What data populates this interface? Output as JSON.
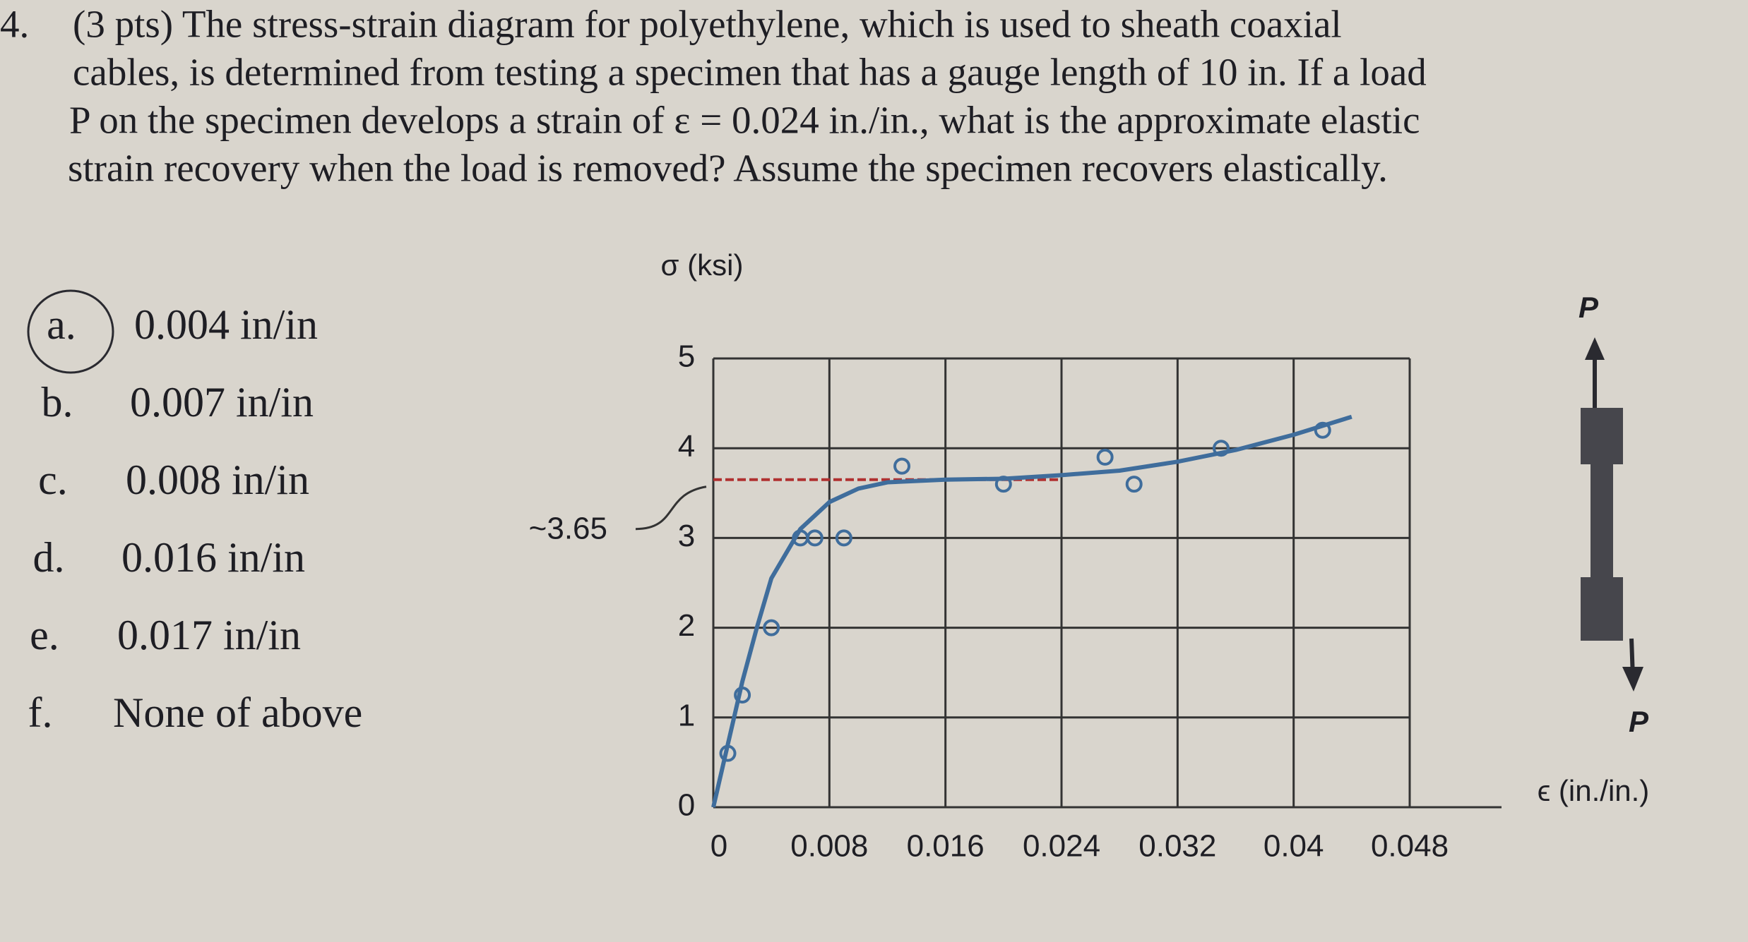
{
  "question": {
    "number": "4.",
    "lines": [
      "(3 pts) The stress-strain diagram for polyethylene, which is used to sheath coaxial",
      "cables, is determined from testing a specimen that has a gauge length of 10 in. If a load",
      "P on the specimen develops a strain of ε = 0.024 in./in., what is the approximate elastic",
      "strain recovery when the load is removed? Assume the specimen recovers elastically."
    ]
  },
  "options": [
    {
      "label": "a.",
      "text": "0.004 in/in"
    },
    {
      "label": "b.",
      "text": "0.007 in/in"
    },
    {
      "label": "c.",
      "text": "0.008 in/in"
    },
    {
      "label": "d.",
      "text": "0.016 in/in"
    },
    {
      "label": "e.",
      "text": "0.017 in/in"
    },
    {
      "label": "f.",
      "text": "None of above"
    }
  ],
  "chart_data": {
    "type": "line",
    "ylabel": "σ (ksi)",
    "xlabel": "ϵ (in./in.)",
    "load_label": "P",
    "xlim": [
      0,
      0.048
    ],
    "ylim": [
      0,
      5
    ],
    "xticks": [
      0,
      0.008,
      0.016,
      0.024,
      0.032,
      0.04,
      0.048
    ],
    "yticks": [
      0,
      1,
      2,
      3,
      4,
      5
    ],
    "grid": true,
    "color": "#3f6d9c",
    "x": [
      0,
      0.001,
      0.002,
      0.003,
      0.004,
      0.006,
      0.008,
      0.01,
      0.012,
      0.016,
      0.02,
      0.024,
      0.028,
      0.032,
      0.036,
      0.04,
      0.044
    ],
    "values": [
      0,
      0.7,
      1.4,
      2.0,
      2.55,
      3.1,
      3.4,
      3.55,
      3.62,
      3.65,
      3.66,
      3.7,
      3.75,
      3.85,
      3.98,
      4.15,
      4.35
    ],
    "markers": {
      "x": [
        0.001,
        0.002,
        0.004,
        0.006,
        0.007,
        0.009,
        0.013,
        0.02,
        0.027,
        0.029,
        0.035,
        0.042
      ],
      "y": [
        0.6,
        1.25,
        2.0,
        3.0,
        3.0,
        3.0,
        3.8,
        3.6,
        3.9,
        3.6,
        4.0,
        4.2
      ]
    },
    "annotation": {
      "value": 3.65,
      "label": "~3.65",
      "color": "#b03030"
    }
  }
}
